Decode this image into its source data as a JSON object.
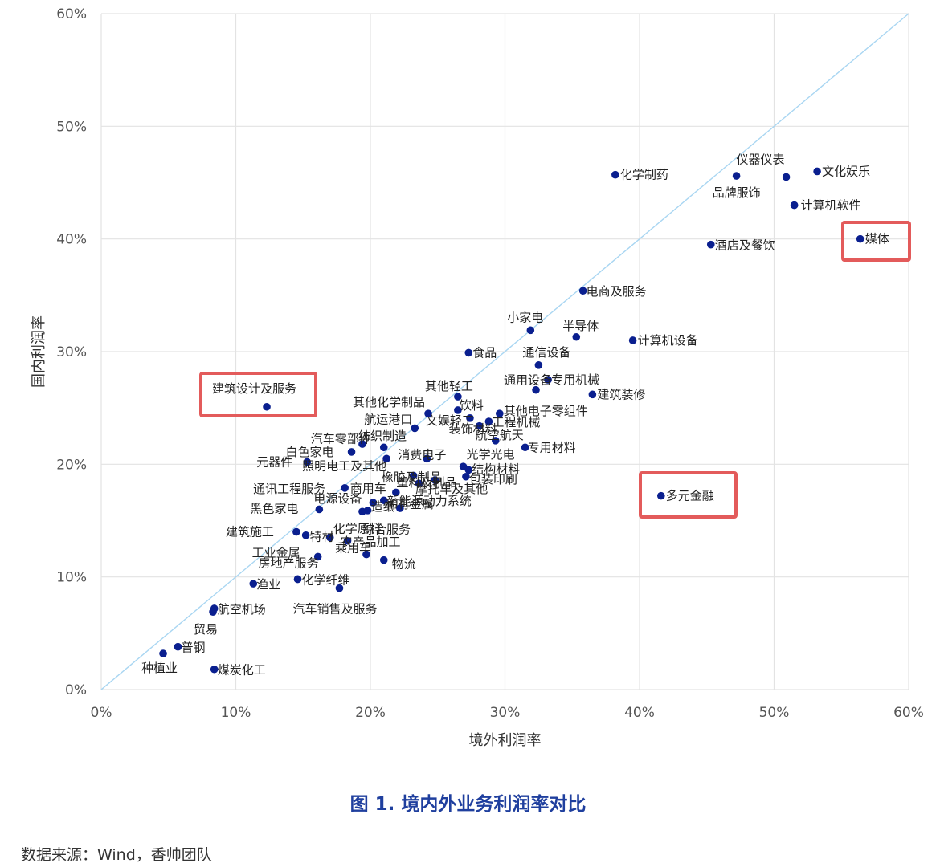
{
  "chart_data": {
    "type": "scatter",
    "xlabel": "境外利润率",
    "ylabel": "国内利润率",
    "xlim": [
      0,
      60
    ],
    "ylim": [
      0,
      60
    ],
    "x_ticks": [
      "0%",
      "10%",
      "20%",
      "30%",
      "40%",
      "50%",
      "60%"
    ],
    "y_ticks": [
      "0%",
      "10%",
      "20%",
      "30%",
      "40%",
      "50%",
      "60%"
    ],
    "grid": true,
    "reference_line": "y=x",
    "colors": {
      "point": "#0a1f8f",
      "diagonal": "#a9d6f2",
      "grid": "#e3e3e3",
      "highlight_box": "#e35b5b"
    },
    "highlighted": [
      "媒体",
      "建筑设计及服务",
      "多元金融"
    ],
    "points": [
      {
        "name": "化学制药",
        "x": 38.2,
        "y": 45.7
      },
      {
        "name": "仪器仪表",
        "x": 50.9,
        "y": 45.5
      },
      {
        "name": "文化娱乐",
        "x": 53.2,
        "y": 46.0
      },
      {
        "name": "品牌服饰",
        "x": 47.2,
        "y": 45.6
      },
      {
        "name": "计算机软件",
        "x": 51.5,
        "y": 43.0
      },
      {
        "name": "媒体",
        "x": 56.4,
        "y": 40.0
      },
      {
        "name": "酒店及餐饮",
        "x": 45.3,
        "y": 39.5
      },
      {
        "name": "电商及服务",
        "x": 35.8,
        "y": 35.4
      },
      {
        "name": "小家电",
        "x": 31.9,
        "y": 31.9
      },
      {
        "name": "半导体",
        "x": 35.3,
        "y": 31.3
      },
      {
        "name": "计算机设备",
        "x": 39.5,
        "y": 31.0
      },
      {
        "name": "食品",
        "x": 27.3,
        "y": 29.9
      },
      {
        "name": "通信设备",
        "x": 32.5,
        "y": 28.8
      },
      {
        "name": "专用机械",
        "x": 33.2,
        "y": 27.5
      },
      {
        "name": "其他轻工",
        "x": 26.5,
        "y": 26.0
      },
      {
        "name": "建筑装修",
        "x": 36.5,
        "y": 26.2
      },
      {
        "name": "饮料",
        "x": 26.5,
        "y": 24.8
      },
      {
        "name": "通用设备",
        "x": 32.3,
        "y": 26.6
      },
      {
        "name": "其他化学制品",
        "x": 24.3,
        "y": 24.5
      },
      {
        "name": "其他电子零组件",
        "x": 29.6,
        "y": 24.5
      },
      {
        "name": "航运港口",
        "x": 23.3,
        "y": 23.2
      },
      {
        "name": "文娱轻工",
        "x": 27.4,
        "y": 24.1
      },
      {
        "name": "工程机械",
        "x": 28.8,
        "y": 23.8
      },
      {
        "name": "装饰材料",
        "x": 28.1,
        "y": 23.4
      },
      {
        "name": "航空航天",
        "x": 29.3,
        "y": 22.1
      },
      {
        "name": "汽车零部件",
        "x": 21.0,
        "y": 21.5
      },
      {
        "name": "纺织制造",
        "x": 19.4,
        "y": 21.8
      },
      {
        "name": "白色家电",
        "x": 18.6,
        "y": 21.1
      },
      {
        "name": "消费电子",
        "x": 24.2,
        "y": 20.5
      },
      {
        "name": "专用材料",
        "x": 31.5,
        "y": 21.5
      },
      {
        "name": "元器件",
        "x": 15.3,
        "y": 20.2
      },
      {
        "name": "光学光电",
        "x": 26.9,
        "y": 19.8
      },
      {
        "name": "照明电工及其他",
        "x": 21.2,
        "y": 20.5
      },
      {
        "name": "橡胶及制品",
        "x": 23.2,
        "y": 19.0
      },
      {
        "name": "结构材料",
        "x": 27.3,
        "y": 19.5
      },
      {
        "name": "塑料及制品",
        "x": 24.8,
        "y": 18.6
      },
      {
        "name": "包装印刷",
        "x": 27.1,
        "y": 18.9
      },
      {
        "name": "摩托车及其他",
        "x": 23.6,
        "y": 18.3
      },
      {
        "name": "通讯工程服务",
        "x": 18.1,
        "y": 17.9
      },
      {
        "name": "商用车",
        "x": 21.9,
        "y": 17.5
      },
      {
        "name": "新能源动力系统",
        "x": 21.0,
        "y": 16.8
      },
      {
        "name": "电源设备",
        "x": 20.2,
        "y": 16.6
      },
      {
        "name": "黑色家电",
        "x": 16.2,
        "y": 16.0
      },
      {
        "name": "稀有金属",
        "x": 22.2,
        "y": 16.1
      },
      {
        "name": "造纸",
        "x": 19.8,
        "y": 15.9
      },
      {
        "name": "综合服务",
        "x": 19.4,
        "y": 15.8
      },
      {
        "name": "建筑施工",
        "x": 14.5,
        "y": 14.0
      },
      {
        "name": "特材",
        "x": 15.2,
        "y": 13.7
      },
      {
        "name": "化学原料",
        "x": 17.0,
        "y": 13.5
      },
      {
        "name": "农产品加工",
        "x": 18.3,
        "y": 13.2
      },
      {
        "name": "工业金属",
        "x": 16.1,
        "y": 11.8
      },
      {
        "name": "房地产服务",
        "x": 14.6,
        "y": 9.8
      },
      {
        "name": "乘用车",
        "x": 19.7,
        "y": 12.0
      },
      {
        "name": "物流",
        "x": 21.0,
        "y": 11.5
      },
      {
        "name": "渔业",
        "x": 11.3,
        "y": 9.4
      },
      {
        "name": "化学纤维",
        "x": 14.6,
        "y": 9.8
      },
      {
        "name": "汽车销售及服务",
        "x": 17.7,
        "y": 9.0
      },
      {
        "name": "航空机场",
        "x": 8.4,
        "y": 7.2
      },
      {
        "name": "贸易",
        "x": 8.3,
        "y": 6.9
      },
      {
        "name": "普钢",
        "x": 5.7,
        "y": 3.8
      },
      {
        "name": "种植业",
        "x": 4.6,
        "y": 3.2
      },
      {
        "name": "煤炭化工",
        "x": 8.4,
        "y": 1.8
      }
    ]
  },
  "caption": "图 1. 境内外业务利润率对比",
  "source": "数据来源：Wind，香帅团队"
}
